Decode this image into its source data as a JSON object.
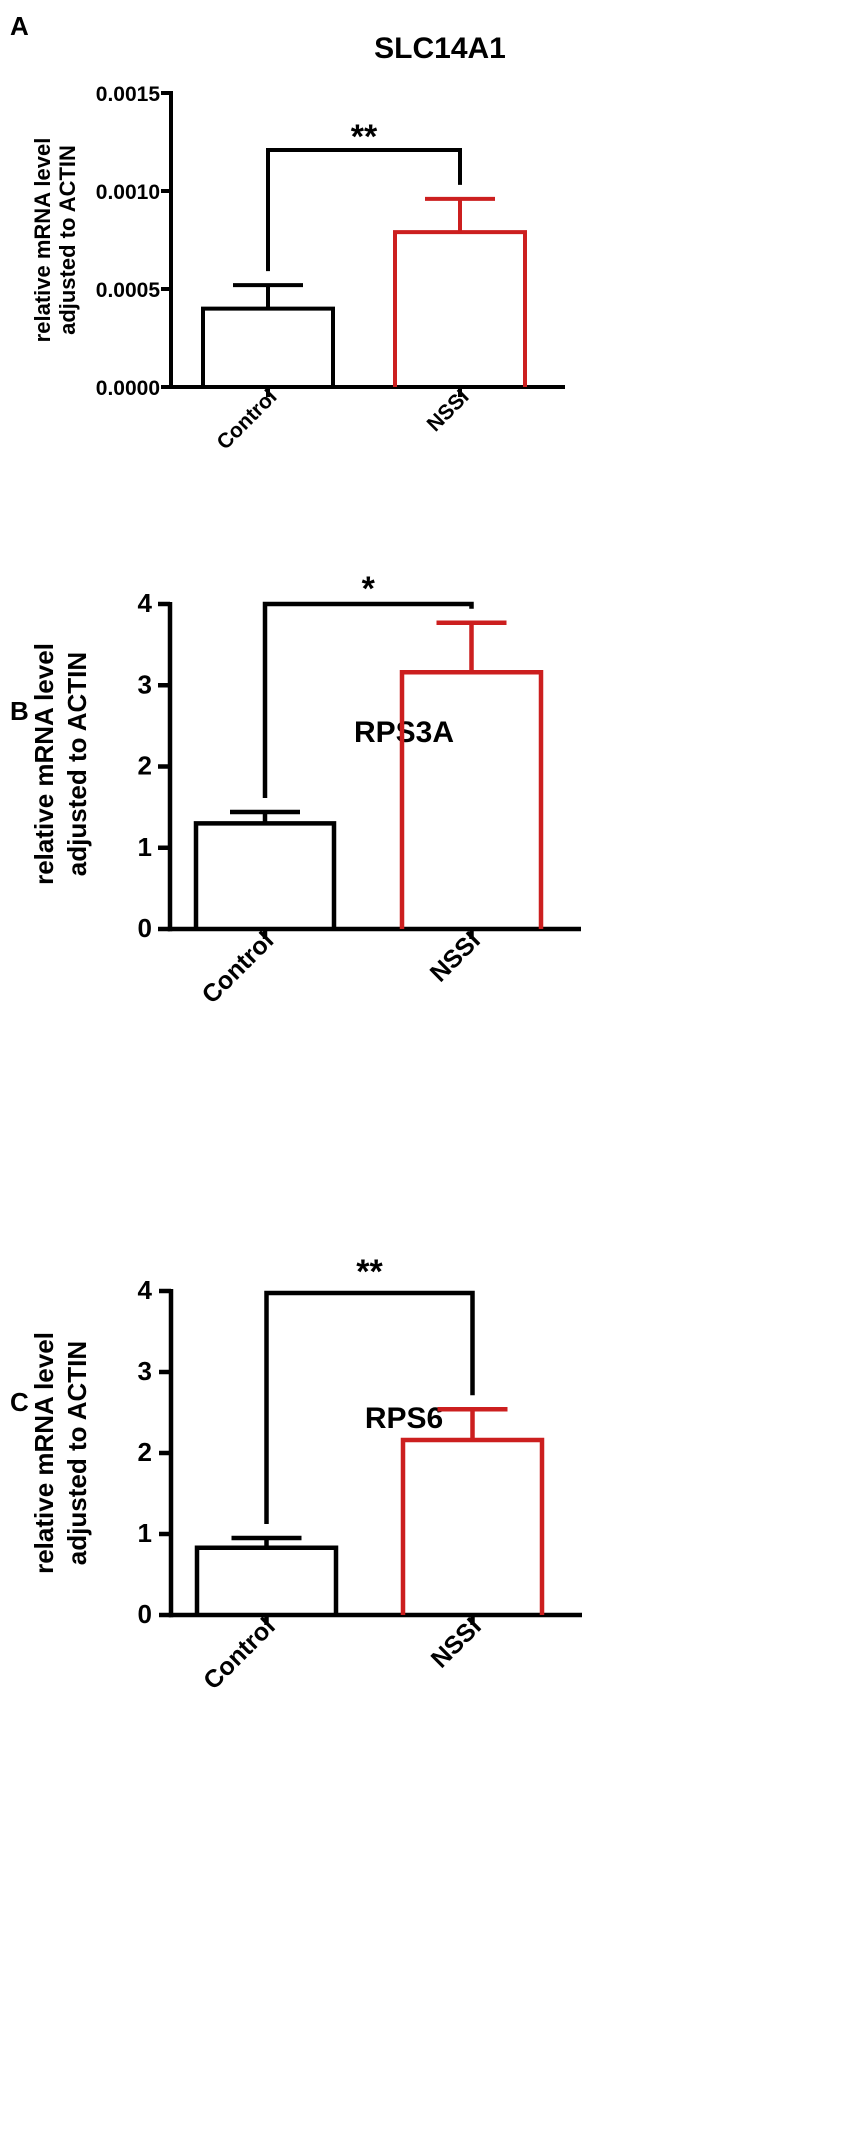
{
  "chart_data": [
    {
      "panel_label": "A",
      "type": "bar",
      "title": "SLC14A1",
      "ylabel": "relative mRNA level adjusted to ACTIN",
      "ylabel_lines": [
        "relative mRNA level",
        "adjusted to ACTIN"
      ],
      "ylim": [
        0,
        0.0015
      ],
      "yticks": [
        0,
        0.0005,
        0.001,
        0.0015
      ],
      "ytick_labels": [
        "0.0000",
        "0.0005",
        "0.0010",
        "0.0015"
      ],
      "categories": [
        "Control",
        "NSSI"
      ],
      "values": [
        0.0004,
        0.00079
      ],
      "error_upper": [
        0.00052,
        0.00096
      ],
      "colors": [
        "#000000",
        "#cc1f1f"
      ],
      "significance": "**"
    },
    {
      "panel_label": "B",
      "type": "bar",
      "title": "RPS3A",
      "ylabel": "relative mRNA level adjusted to ACTIN",
      "ylabel_lines": [
        "relative mRNA level",
        "adjusted to ACTIN"
      ],
      "ylim": [
        0,
        4
      ],
      "yticks": [
        0,
        1,
        2,
        3,
        4
      ],
      "ytick_labels": [
        "0",
        "1",
        "2",
        "3",
        "4"
      ],
      "categories": [
        "Control",
        "NSSI"
      ],
      "values": [
        1.3,
        3.16
      ],
      "error_upper": [
        1.44,
        3.77
      ],
      "colors": [
        "#000000",
        "#cc1f1f"
      ],
      "significance": "*"
    },
    {
      "panel_label": "C",
      "type": "bar",
      "title": "RPS6",
      "ylabel": "relative mRNA level adjusted to ACTIN",
      "ylabel_lines": [
        "relative mRNA level",
        "adjusted to ACTIN"
      ],
      "ylim": [
        0,
        4
      ],
      "yticks": [
        0,
        1,
        2,
        3,
        4
      ],
      "ytick_labels": [
        "0",
        "1",
        "2",
        "3",
        "4"
      ],
      "categories": [
        "Control",
        "NSSI"
      ],
      "values": [
        0.83,
        2.16
      ],
      "error_upper": [
        0.95,
        2.54
      ],
      "colors": [
        "#000000",
        "#cc1f1f"
      ],
      "significance": "**"
    }
  ]
}
